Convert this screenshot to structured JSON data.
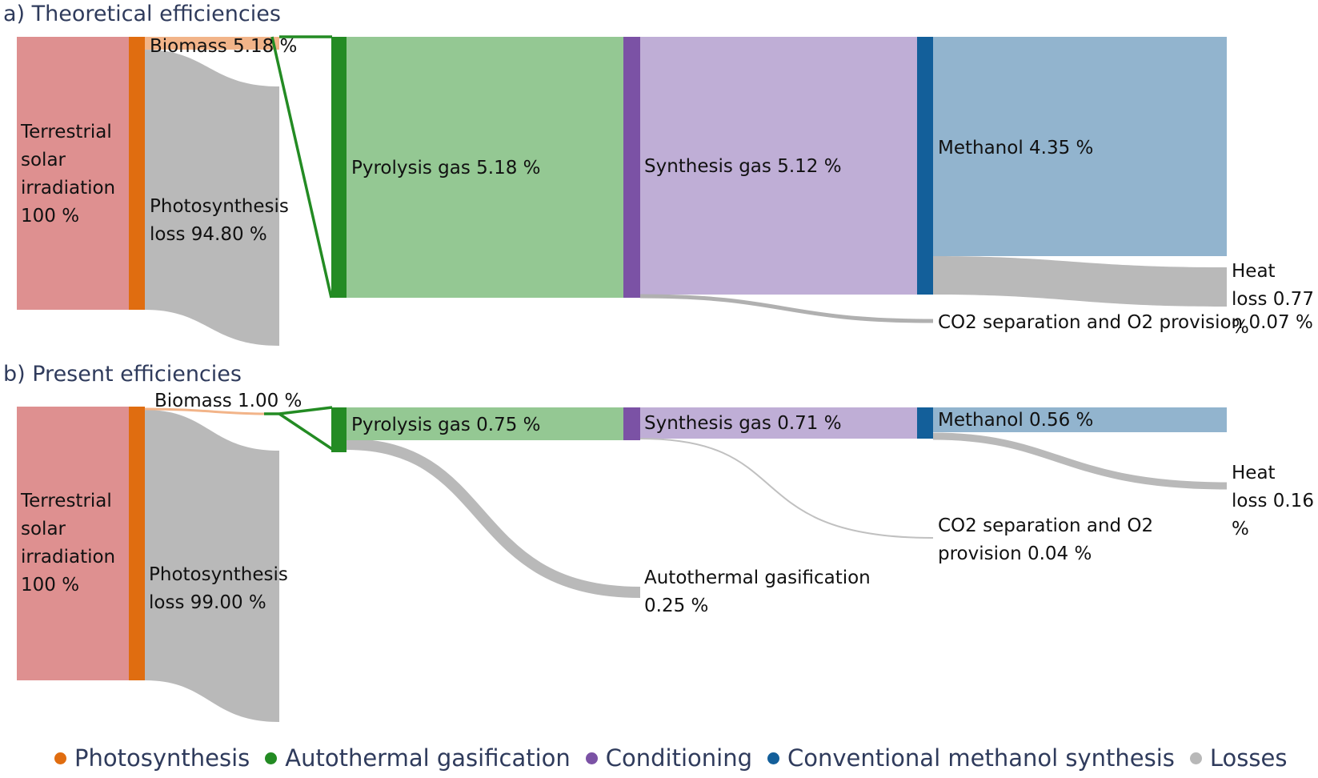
{
  "panel_a": {
    "title": "a) Theoretical efficiencies",
    "nodes": {
      "terrestrial": "Terrestrial solar irradiation 100 %",
      "biomass": "Biomass 5.18 %",
      "photosynthesis_loss": "Photosynthesis loss 94.80 %",
      "pyrolysis": "Pyrolysis gas 5.18 %",
      "synthesis": "Synthesis gas 5.12 %",
      "methanol": "Methanol 4.35 %",
      "heat_loss": "Heat loss 0.77 %",
      "co2_sep": "CO2 separation and O2 provision 0.07 %"
    }
  },
  "panel_b": {
    "title": "b) Present efficiencies",
    "nodes": {
      "terrestrial": "Terrestrial solar irradiation 100 %",
      "biomass": "Biomass 1.00 %",
      "photosynthesis_loss": "Photosynthesis loss 99.00 %",
      "pyrolysis": "Pyrolysis gas 0.75 %",
      "synthesis": "Synthesis gas 0.71 %",
      "methanol": "Methanol 0.56 %",
      "heat_loss": "Heat loss 0.16 %",
      "co2_sep": "CO2 separation and O2 provision 0.04 %",
      "autothermal": "Autothermal gasification 0.25 %"
    }
  },
  "legend": [
    {
      "label": "Photosynthesis",
      "color": "#e06d10"
    },
    {
      "label": "Autothermal gasification",
      "color": "#238b23"
    },
    {
      "label": "Conditioning",
      "color": "#7b52a5"
    },
    {
      "label": "Conventional methanol synthesis",
      "color": "#135f9a"
    },
    {
      "label": "Losses",
      "color": "#b8b8b8"
    }
  ],
  "chart_data": [
    {
      "type": "sankey",
      "title": "a) Theoretical efficiencies",
      "units": "%",
      "nodes": [
        "Terrestrial solar irradiation",
        "Biomass",
        "Photosynthesis loss",
        "Pyrolysis gas",
        "Synthesis gas",
        "Methanol",
        "Heat loss",
        "CO2 separation and O2 provision"
      ],
      "links": [
        {
          "source": "Terrestrial solar irradiation",
          "target": "Biomass",
          "value": 5.18
        },
        {
          "source": "Terrestrial solar irradiation",
          "target": "Photosynthesis loss",
          "value": 94.8
        },
        {
          "source": "Biomass",
          "target": "Pyrolysis gas",
          "value": 5.18
        },
        {
          "source": "Pyrolysis gas",
          "target": "Synthesis gas",
          "value": 5.12
        },
        {
          "source": "Synthesis gas",
          "target": "Methanol",
          "value": 4.35
        },
        {
          "source": "Synthesis gas",
          "target": "Heat loss",
          "value": 0.77
        },
        {
          "source": "Synthesis gas",
          "target": "CO2 separation and O2 provision",
          "value": 0.07
        }
      ]
    },
    {
      "type": "sankey",
      "title": "b) Present efficiencies",
      "units": "%",
      "nodes": [
        "Terrestrial solar irradiation",
        "Biomass",
        "Photosynthesis loss",
        "Pyrolysis gas",
        "Autothermal gasification",
        "Synthesis gas",
        "Methanol",
        "Heat loss",
        "CO2 separation and O2 provision"
      ],
      "links": [
        {
          "source": "Terrestrial solar irradiation",
          "target": "Biomass",
          "value": 1.0
        },
        {
          "source": "Terrestrial solar irradiation",
          "target": "Photosynthesis loss",
          "value": 99.0
        },
        {
          "source": "Biomass",
          "target": "Pyrolysis gas",
          "value": 0.75
        },
        {
          "source": "Biomass",
          "target": "Autothermal gasification",
          "value": 0.25
        },
        {
          "source": "Pyrolysis gas",
          "target": "Synthesis gas",
          "value": 0.71
        },
        {
          "source": "Synthesis gas",
          "target": "Methanol",
          "value": 0.56
        },
        {
          "source": "Synthesis gas",
          "target": "Heat loss",
          "value": 0.16
        },
        {
          "source": "Synthesis gas",
          "target": "CO2 separation and O2 provision",
          "value": 0.04
        }
      ]
    }
  ]
}
